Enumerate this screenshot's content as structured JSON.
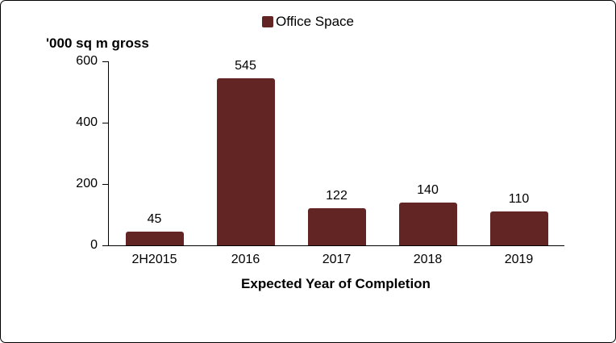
{
  "chart_data": {
    "type": "bar",
    "legend": {
      "label": "Office Space",
      "position": "top"
    },
    "ylabel": "'000 sq m gross",
    "xlabel": "Expected Year of Completion",
    "categories": [
      "2H2015",
      "2016",
      "2017",
      "2018",
      "2019"
    ],
    "values": [
      45,
      545,
      122,
      140,
      110
    ],
    "ylim": [
      0,
      600
    ],
    "yticks": [
      0,
      200,
      400,
      600
    ],
    "grid": false,
    "data_labels": true,
    "bar_color": "#622523",
    "axis_color": "#000000",
    "text_color": "#000000"
  }
}
